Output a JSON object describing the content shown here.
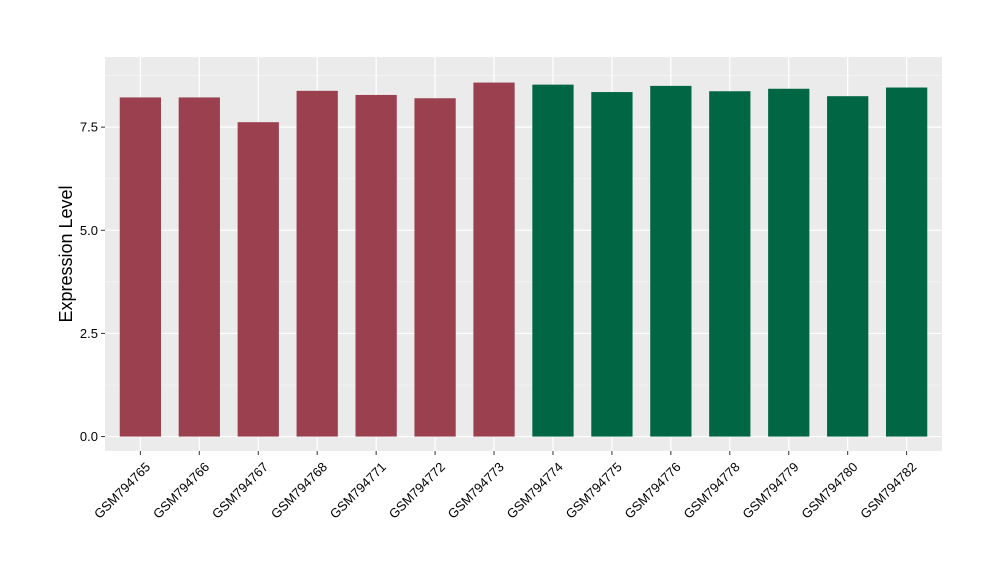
{
  "chart_data": {
    "type": "bar",
    "title": "",
    "xlabel": "",
    "ylabel": "Expression Level",
    "ylim": [
      -0.35,
      9.2
    ],
    "yticks": [
      0.0,
      2.5,
      5.0,
      7.5
    ],
    "ytick_labels": [
      "0.0",
      "2.5",
      "5.0",
      "7.5"
    ],
    "grid": true,
    "legend": "none",
    "categories": [
      "GSM794765",
      "GSM794766",
      "GSM794767",
      "GSM794768",
      "GSM794771",
      "GSM794772",
      "GSM794773",
      "GSM794774",
      "GSM794775",
      "GSM794776",
      "GSM794778",
      "GSM794779",
      "GSM794780",
      "GSM794782"
    ],
    "values": [
      8.22,
      8.22,
      7.62,
      8.38,
      8.28,
      8.2,
      8.58,
      8.53,
      8.35,
      8.5,
      8.37,
      8.43,
      8.25,
      8.46
    ],
    "bar_colors": [
      "#9a404f",
      "#9a404f",
      "#9a404f",
      "#9a404f",
      "#9a404f",
      "#9a404f",
      "#9a404f",
      "#006644",
      "#006644",
      "#006644",
      "#006644",
      "#006644",
      "#006644",
      "#006644"
    ],
    "colors": {
      "panel_background": "#ebebeb",
      "grid_major": "#ffffff",
      "grid_minor": "#f5f5f5",
      "axis_tick": "#333333",
      "text": "#000000"
    }
  }
}
